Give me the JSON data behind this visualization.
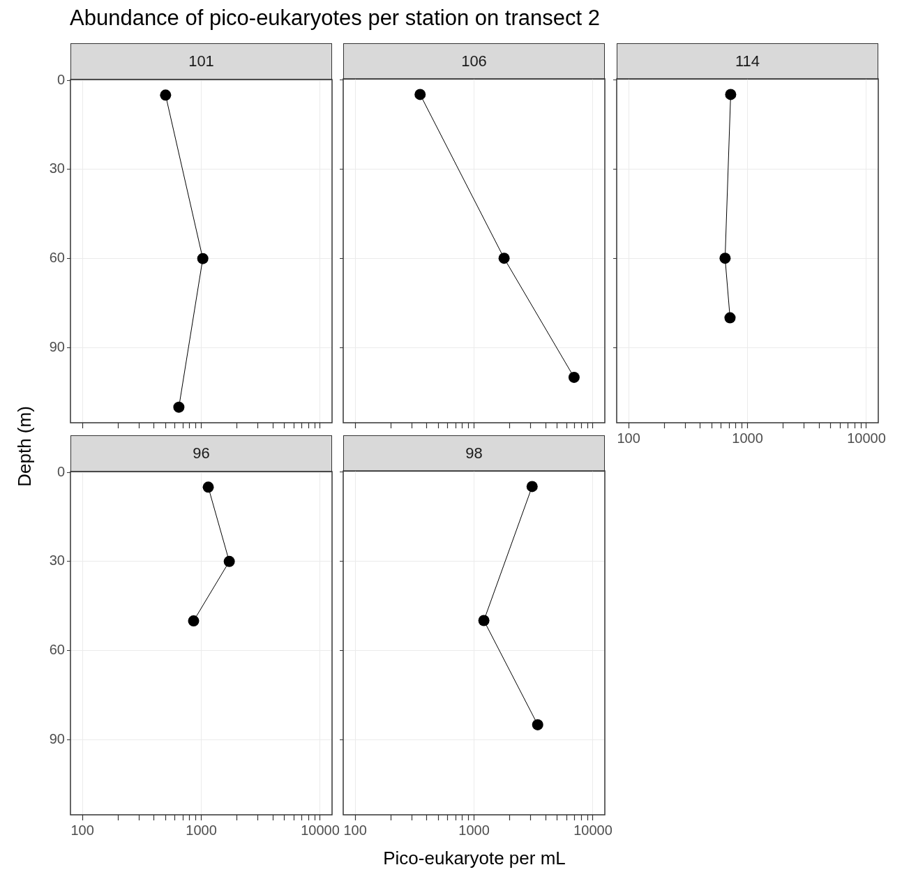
{
  "chart_data": [
    {
      "type": "line",
      "title": "101",
      "annotations": [
        "Abundance of pico-eukaryotes per station on transect 2"
      ],
      "ylabel": "Depth (m)",
      "log": "x",
      "grid": true,
      "marker": "circle",
      "line_style": "solid",
      "legend": false,
      "tick_labels": "y",
      "x": [
        501,
        1030,
        648
      ],
      "series": [
        {
          "color": "#000000",
          "values": [
            5,
            60,
            110
          ]
        }
      ],
      "xlim": [
        79.4,
        12589
      ],
      "ylim": [
        115.25,
        -0.25
      ],
      "yticks": [
        0,
        30,
        60,
        90
      ],
      "xticks": [
        100,
        {
          "value": 200,
          "label": null
        },
        {
          "value": 300,
          "label": null
        },
        {
          "value": 400,
          "label": null
        },
        {
          "value": 500,
          "label": null
        },
        {
          "value": 600,
          "label": null
        },
        {
          "value": 700,
          "label": null
        },
        {
          "value": 800,
          "label": null
        },
        {
          "value": 900,
          "label": null
        },
        1000,
        {
          "value": 2000,
          "label": null
        },
        {
          "value": 3000,
          "label": null
        },
        {
          "value": 4000,
          "label": null
        },
        {
          "value": 5000,
          "label": null
        },
        {
          "value": 6000,
          "label": null
        },
        {
          "value": 7000,
          "label": null
        },
        {
          "value": 8000,
          "label": null
        },
        {
          "value": 9000,
          "label": null
        },
        10000
      ]
    },
    {
      "type": "line",
      "title": "106",
      "log": "x",
      "grid": true,
      "marker": "circle",
      "line_style": "solid",
      "legend": false,
      "tick_labels": false,
      "x": [
        352,
        1790,
        6940
      ],
      "series": [
        {
          "color": "#000000",
          "values": [
            5,
            60,
            100
          ]
        }
      ],
      "xlim": [
        79.4,
        12589
      ],
      "ylim": [
        115.25,
        -0.25
      ],
      "yticks": [
        0,
        30,
        60,
        90
      ],
      "xticks": [
        100,
        {
          "value": 200,
          "label": null
        },
        {
          "value": 300,
          "label": null
        },
        {
          "value": 400,
          "label": null
        },
        {
          "value": 500,
          "label": null
        },
        {
          "value": 600,
          "label": null
        },
        {
          "value": 700,
          "label": null
        },
        {
          "value": 800,
          "label": null
        },
        {
          "value": 900,
          "label": null
        },
        1000,
        {
          "value": 2000,
          "label": null
        },
        {
          "value": 3000,
          "label": null
        },
        {
          "value": 4000,
          "label": null
        },
        {
          "value": 5000,
          "label": null
        },
        {
          "value": 6000,
          "label": null
        },
        {
          "value": 7000,
          "label": null
        },
        {
          "value": 8000,
          "label": null
        },
        {
          "value": 9000,
          "label": null
        },
        10000
      ]
    },
    {
      "type": "line",
      "title": "114",
      "log": "x",
      "grid": true,
      "marker": "circle",
      "line_style": "solid",
      "legend": false,
      "tick_labels": "x",
      "x": [
        722,
        648,
        713
      ],
      "series": [
        {
          "color": "#000000",
          "values": [
            5,
            60,
            80
          ]
        }
      ],
      "xlim": [
        79.4,
        12589
      ],
      "ylim": [
        115.25,
        -0.25
      ],
      "yticks": [
        0,
        30,
        60,
        90
      ],
      "xticks": [
        100,
        {
          "value": 200,
          "label": null
        },
        {
          "value": 300,
          "label": null
        },
        {
          "value": 400,
          "label": null
        },
        {
          "value": 500,
          "label": null
        },
        {
          "value": 600,
          "label": null
        },
        {
          "value": 700,
          "label": null
        },
        {
          "value": 800,
          "label": null
        },
        {
          "value": 900,
          "label": null
        },
        1000,
        {
          "value": 2000,
          "label": null
        },
        {
          "value": 3000,
          "label": null
        },
        {
          "value": 4000,
          "label": null
        },
        {
          "value": 5000,
          "label": null
        },
        {
          "value": 6000,
          "label": null
        },
        {
          "value": 7000,
          "label": null
        },
        {
          "value": 8000,
          "label": null
        },
        {
          "value": 9000,
          "label": null
        },
        10000
      ]
    },
    {
      "type": "line",
      "title": "96",
      "log": "x",
      "grid": true,
      "marker": "circle",
      "line_style": "solid",
      "legend": false,
      "x": [
        1145,
        1720,
        862
      ],
      "series": [
        {
          "color": "#000000",
          "values": [
            5,
            30,
            50
          ]
        }
      ],
      "xlim": [
        79.4,
        12589
      ],
      "ylim": [
        115.25,
        -0.25
      ],
      "yticks": [
        0,
        30,
        60,
        90
      ],
      "xticks": [
        100,
        {
          "value": 200,
          "label": null
        },
        {
          "value": 300,
          "label": null
        },
        {
          "value": 400,
          "label": null
        },
        {
          "value": 500,
          "label": null
        },
        {
          "value": 600,
          "label": null
        },
        {
          "value": 700,
          "label": null
        },
        {
          "value": 800,
          "label": null
        },
        {
          "value": 900,
          "label": null
        },
        1000,
        {
          "value": 2000,
          "label": null
        },
        {
          "value": 3000,
          "label": null
        },
        {
          "value": 4000,
          "label": null
        },
        {
          "value": 5000,
          "label": null
        },
        {
          "value": 6000,
          "label": null
        },
        {
          "value": 7000,
          "label": null
        },
        {
          "value": 8000,
          "label": null
        },
        {
          "value": 9000,
          "label": null
        },
        10000
      ]
    },
    {
      "type": "line",
      "title": "98",
      "xlabel": "Pico-eukaryote per mL",
      "log": "x",
      "grid": true,
      "marker": "circle",
      "line_style": "solid",
      "legend": false,
      "tick_labels": "x",
      "x": [
        3080,
        1210,
        3430
      ],
      "series": [
        {
          "color": "#000000",
          "values": [
            5,
            50,
            85
          ]
        }
      ],
      "xlim": [
        79.4,
        12589
      ],
      "ylim": [
        115.25,
        -0.25
      ],
      "yticks": [
        0,
        30,
        60,
        90
      ],
      "xticks": [
        100,
        {
          "value": 200,
          "label": null
        },
        {
          "value": 300,
          "label": null
        },
        {
          "value": 400,
          "label": null
        },
        {
          "value": 500,
          "label": null
        },
        {
          "value": 600,
          "label": null
        },
        {
          "value": 700,
          "label": null
        },
        {
          "value": 800,
          "label": null
        },
        {
          "value": 900,
          "label": null
        },
        1000,
        {
          "value": 2000,
          "label": null
        },
        {
          "value": 3000,
          "label": null
        },
        {
          "value": 4000,
          "label": null
        },
        {
          "value": 5000,
          "label": null
        },
        {
          "value": 6000,
          "label": null
        },
        {
          "value": 7000,
          "label": null
        },
        {
          "value": 8000,
          "label": null
        },
        {
          "value": 9000,
          "label": null
        },
        10000
      ]
    }
  ]
}
